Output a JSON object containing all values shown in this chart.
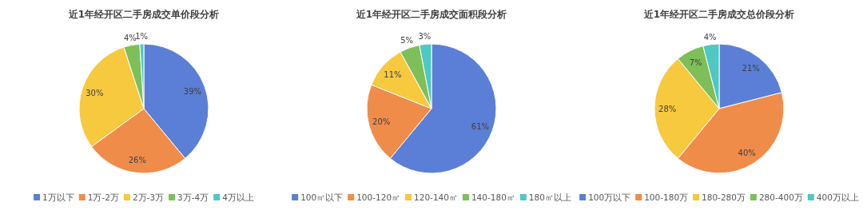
{
  "chart_data": [
    {
      "type": "pie",
      "title": "近1年经开区二手房成交单价段分析",
      "categories": [
        "1万以下",
        "1万-2万",
        "2万-3万",
        "3万-4万",
        "4万以上"
      ],
      "values": [
        39,
        26,
        30,
        4,
        1
      ],
      "value_labels": [
        "39%",
        "26%",
        "30%",
        "4%",
        "1%"
      ],
      "colors": [
        "#5b7fd6",
        "#f08c4a",
        "#f7c93e",
        "#7fbf5a",
        "#4fc7c2"
      ],
      "legend": "bottom"
    },
    {
      "type": "pie",
      "title": "近1年经开区二手房成交面积段分析",
      "categories": [
        "100㎡以下",
        "100-120㎡",
        "120-140㎡",
        "140-180㎡",
        "180㎡以上"
      ],
      "values": [
        61,
        20,
        11,
        5,
        3
      ],
      "value_labels": [
        "61%",
        "20%",
        "11%",
        "5%",
        "3%"
      ],
      "colors": [
        "#5b7fd6",
        "#f08c4a",
        "#f7c93e",
        "#7fbf5a",
        "#4fc7c2"
      ],
      "legend": "bottom"
    },
    {
      "type": "pie",
      "title": "近1年经开区二手房成交总价段分析",
      "categories": [
        "100万以下",
        "100-180万",
        "180-280万",
        "280-400万",
        "400万以上"
      ],
      "values": [
        21,
        40,
        28,
        7,
        4
      ],
      "value_labels": [
        "21%",
        "40%",
        "28%",
        "7%",
        "4%"
      ],
      "colors": [
        "#5b7fd6",
        "#f08c4a",
        "#f7c93e",
        "#7fbf5a",
        "#4fc7c2"
      ],
      "legend": "bottom"
    }
  ]
}
